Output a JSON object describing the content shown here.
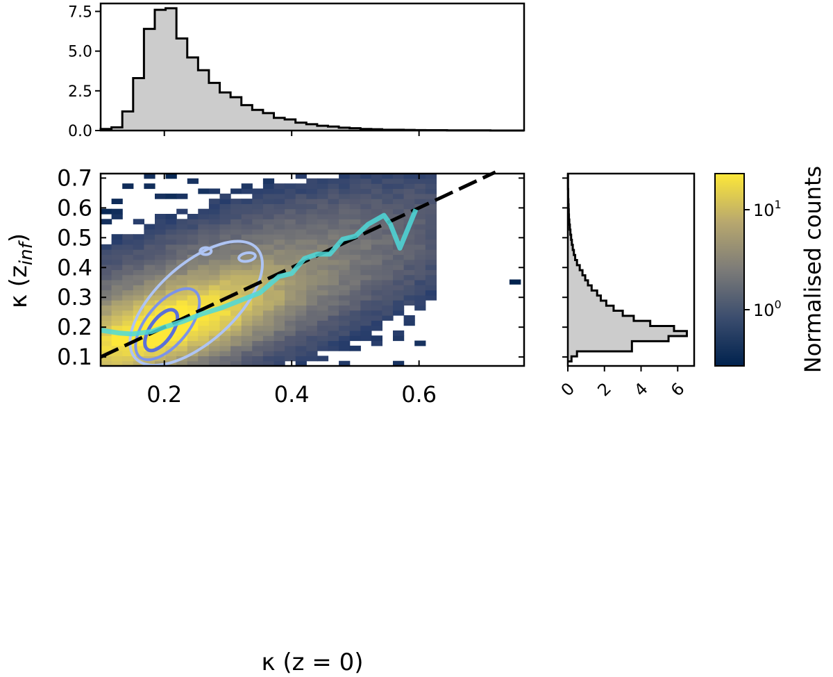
{
  "chart_data": {
    "type": "heatmap",
    "main": {
      "xlabel": "κ (z = 0)",
      "ylabel": "κ (z_inf)",
      "xlim": [
        0.1,
        0.765
      ],
      "ylim": [
        0.07,
        0.715
      ],
      "xticks": [
        0.2,
        0.4,
        0.6
      ],
      "xtick_labels": [
        "0.2",
        "0.4",
        "0.6"
      ],
      "yticks": [
        0.1,
        0.2,
        0.3,
        0.4,
        0.5,
        0.6,
        0.7
      ],
      "ytick_labels": [
        "0.1",
        "0.2",
        "0.3",
        "0.4",
        "0.5",
        "0.6",
        "0.7"
      ],
      "identity_line": {
        "style": "dashed",
        "color": "#000000",
        "x": [
          0.1,
          0.72
        ],
        "y": [
          0.1,
          0.72
        ]
      },
      "median_line": {
        "color": "#4dd9d9",
        "x": [
          0.1,
          0.13,
          0.15,
          0.18,
          0.2,
          0.23,
          0.26,
          0.29,
          0.32,
          0.35,
          0.38,
          0.4,
          0.42,
          0.44,
          0.46,
          0.48,
          0.5,
          0.52,
          0.545,
          0.555,
          0.57,
          0.595
        ],
        "y": [
          0.19,
          0.18,
          0.177,
          0.185,
          0.2,
          0.22,
          0.245,
          0.265,
          0.29,
          0.315,
          0.37,
          0.38,
          0.43,
          0.445,
          0.445,
          0.495,
          0.505,
          0.545,
          0.575,
          0.545,
          0.465,
          0.595
        ]
      },
      "contours": {
        "colors": [
          "#aec4f4",
          "#7c93e8",
          "#5a6fd8"
        ],
        "levels": 3
      },
      "bin_size": 0.017
    },
    "top_hist": {
      "yticks": [
        0.0,
        2.5,
        5.0,
        7.5
      ],
      "ytick_labels": [
        "0.0",
        "2.5",
        "5.0",
        "7.5"
      ],
      "ylim": [
        0,
        8.0
      ],
      "bin_edges": [
        0.1,
        0.117,
        0.134,
        0.151,
        0.168,
        0.185,
        0.202,
        0.219,
        0.236,
        0.253,
        0.27,
        0.287,
        0.304,
        0.321,
        0.338,
        0.355,
        0.372,
        0.389,
        0.406,
        0.423,
        0.44,
        0.457,
        0.474,
        0.491,
        0.508,
        0.525,
        0.542,
        0.559,
        0.576,
        0.593,
        0.61,
        0.627,
        0.644,
        0.661,
        0.678,
        0.695,
        0.712,
        0.729,
        0.746,
        0.765
      ],
      "counts": [
        0.1,
        0.2,
        1.2,
        3.3,
        6.4,
        7.6,
        7.7,
        5.8,
        4.6,
        3.8,
        3.0,
        2.4,
        2.1,
        1.6,
        1.3,
        1.1,
        0.8,
        0.7,
        0.5,
        0.4,
        0.3,
        0.25,
        0.18,
        0.15,
        0.1,
        0.08,
        0.05,
        0.05,
        0.04,
        0.03,
        0.02,
        0.02,
        0.01,
        0.01,
        0.01,
        0.01,
        0.0,
        0.0,
        0.0
      ]
    },
    "right_hist": {
      "xticks": [
        0,
        2,
        4,
        6
      ],
      "xtick_labels": [
        "0",
        "2",
        "4",
        "6"
      ],
      "xlim": [
        0,
        6.9
      ],
      "bin_edges": [
        0.085,
        0.102,
        0.119,
        0.136,
        0.153,
        0.17,
        0.187,
        0.204,
        0.221,
        0.238,
        0.255,
        0.272,
        0.289,
        0.306,
        0.323,
        0.34,
        0.357,
        0.374,
        0.391,
        0.408,
        0.425,
        0.442,
        0.459,
        0.476,
        0.493,
        0.51,
        0.527,
        0.544,
        0.561,
        0.578,
        0.595,
        0.612,
        0.629,
        0.646,
        0.663,
        0.68,
        0.697,
        0.715
      ],
      "counts": [
        0.2,
        0.5,
        3.5,
        3.5,
        5.5,
        6.5,
        5.8,
        4.5,
        3.6,
        3.0,
        2.5,
        2.1,
        1.8,
        1.6,
        1.3,
        1.1,
        0.95,
        0.8,
        0.65,
        0.5,
        0.4,
        0.33,
        0.27,
        0.22,
        0.18,
        0.14,
        0.11,
        0.08,
        0.06,
        0.05,
        0.04,
        0.03,
        0.02,
        0.02,
        0.01,
        0.01,
        0.01
      ]
    },
    "colorbar": {
      "label": "Normalised counts",
      "scale": "log",
      "tick_labels": [
        {
          "base": "10",
          "exp": "0"
        },
        {
          "base": "10",
          "exp": "1"
        }
      ],
      "colors": [
        "#00224e",
        "#3b4d6e",
        "#7c7b78",
        "#b8a86e",
        "#fee838"
      ]
    }
  }
}
